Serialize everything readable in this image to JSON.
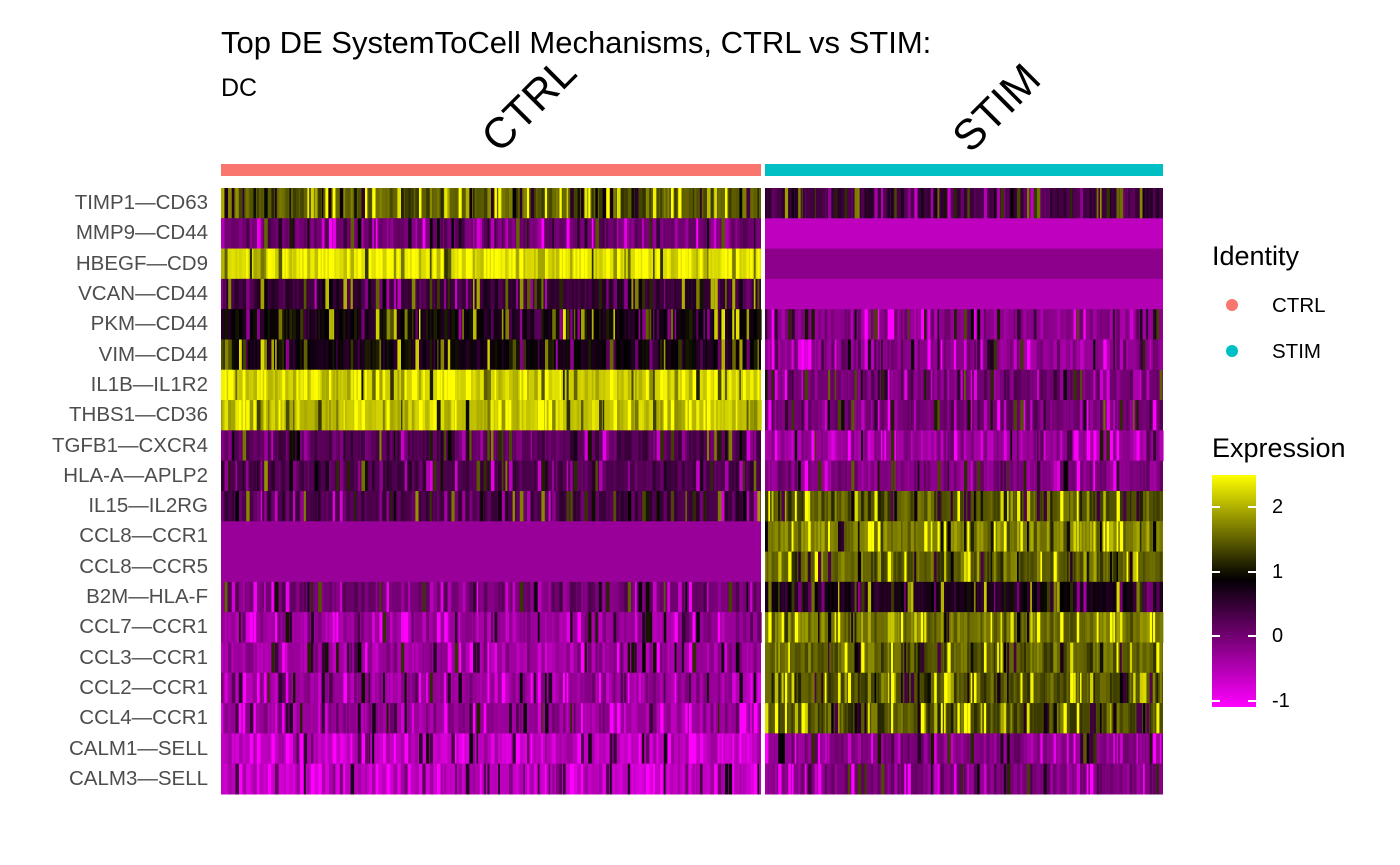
{
  "chart_data": {
    "type": "heatmap",
    "title": "Top DE SystemToCell Mechanisms, CTRL vs STIM:",
    "subtitle": "DC",
    "groups": [
      {
        "name": "CTRL",
        "color": "#F8766D"
      },
      {
        "name": "STIM",
        "color": "#00BFC4"
      }
    ],
    "rows": [
      {
        "label": "TIMP1—CD63",
        "CTRL": 1.5,
        "STIM": 0.4
      },
      {
        "label": "MMP9—CD44",
        "CTRL": 0.0,
        "STIM": -0.6
      },
      {
        "label": "HBEGF—CD9",
        "CTRL": 2.3,
        "STIM": -0.2
      },
      {
        "label": "VCAN—CD44",
        "CTRL": 0.5,
        "STIM": -0.5
      },
      {
        "label": "PKM—CD44",
        "CTRL": 0.8,
        "STIM": -0.2
      },
      {
        "label": "VIM—CD44",
        "CTRL": 0.8,
        "STIM": -0.2
      },
      {
        "label": "IL1B—IL1R2",
        "CTRL": 2.2,
        "STIM": 0.0
      },
      {
        "label": "THBS1—CD36",
        "CTRL": 2.1,
        "STIM": 0.0
      },
      {
        "label": "TGFB1—CXCR4",
        "CTRL": 0.2,
        "STIM": -0.3
      },
      {
        "label": "HLA-A—APLP2",
        "CTRL": 0.3,
        "STIM": -0.1
      },
      {
        "label": "IL15—IL2RG",
        "CTRL": 0.3,
        "STIM": 1.4
      },
      {
        "label": "CCL8—CCR1",
        "CTRL": -0.3,
        "STIM": 1.7
      },
      {
        "label": "CCL8—CCR5",
        "CTRL": -0.3,
        "STIM": 1.5
      },
      {
        "label": "B2M—HLA-F",
        "CTRL": 0.0,
        "STIM": 0.7
      },
      {
        "label": "CCL7—CCR1",
        "CTRL": -0.3,
        "STIM": 1.6
      },
      {
        "label": "CCL3—CCR1",
        "CTRL": -0.3,
        "STIM": 1.5
      },
      {
        "label": "CCL2—CCR1",
        "CTRL": -0.3,
        "STIM": 1.4
      },
      {
        "label": "CCL4—CCR1",
        "CTRL": -0.3,
        "STIM": 1.4
      },
      {
        "label": "CALM1—SELL",
        "CTRL": -0.6,
        "STIM": -0.1
      },
      {
        "label": "CALM3—SELL",
        "CTRL": -0.6,
        "STIM": -0.1
      }
    ],
    "legend": {
      "identity_title": "Identity",
      "expression_title": "Expression",
      "expression_ticks": [
        2,
        1,
        0,
        -1
      ],
      "expression_range": [
        -1.1,
        2.5
      ],
      "colors": {
        "low": "#FF00FF",
        "mid": "#000000",
        "high": "#FFFF00"
      }
    }
  },
  "tick_labels": [
    "2",
    "1",
    "0",
    "-1"
  ]
}
